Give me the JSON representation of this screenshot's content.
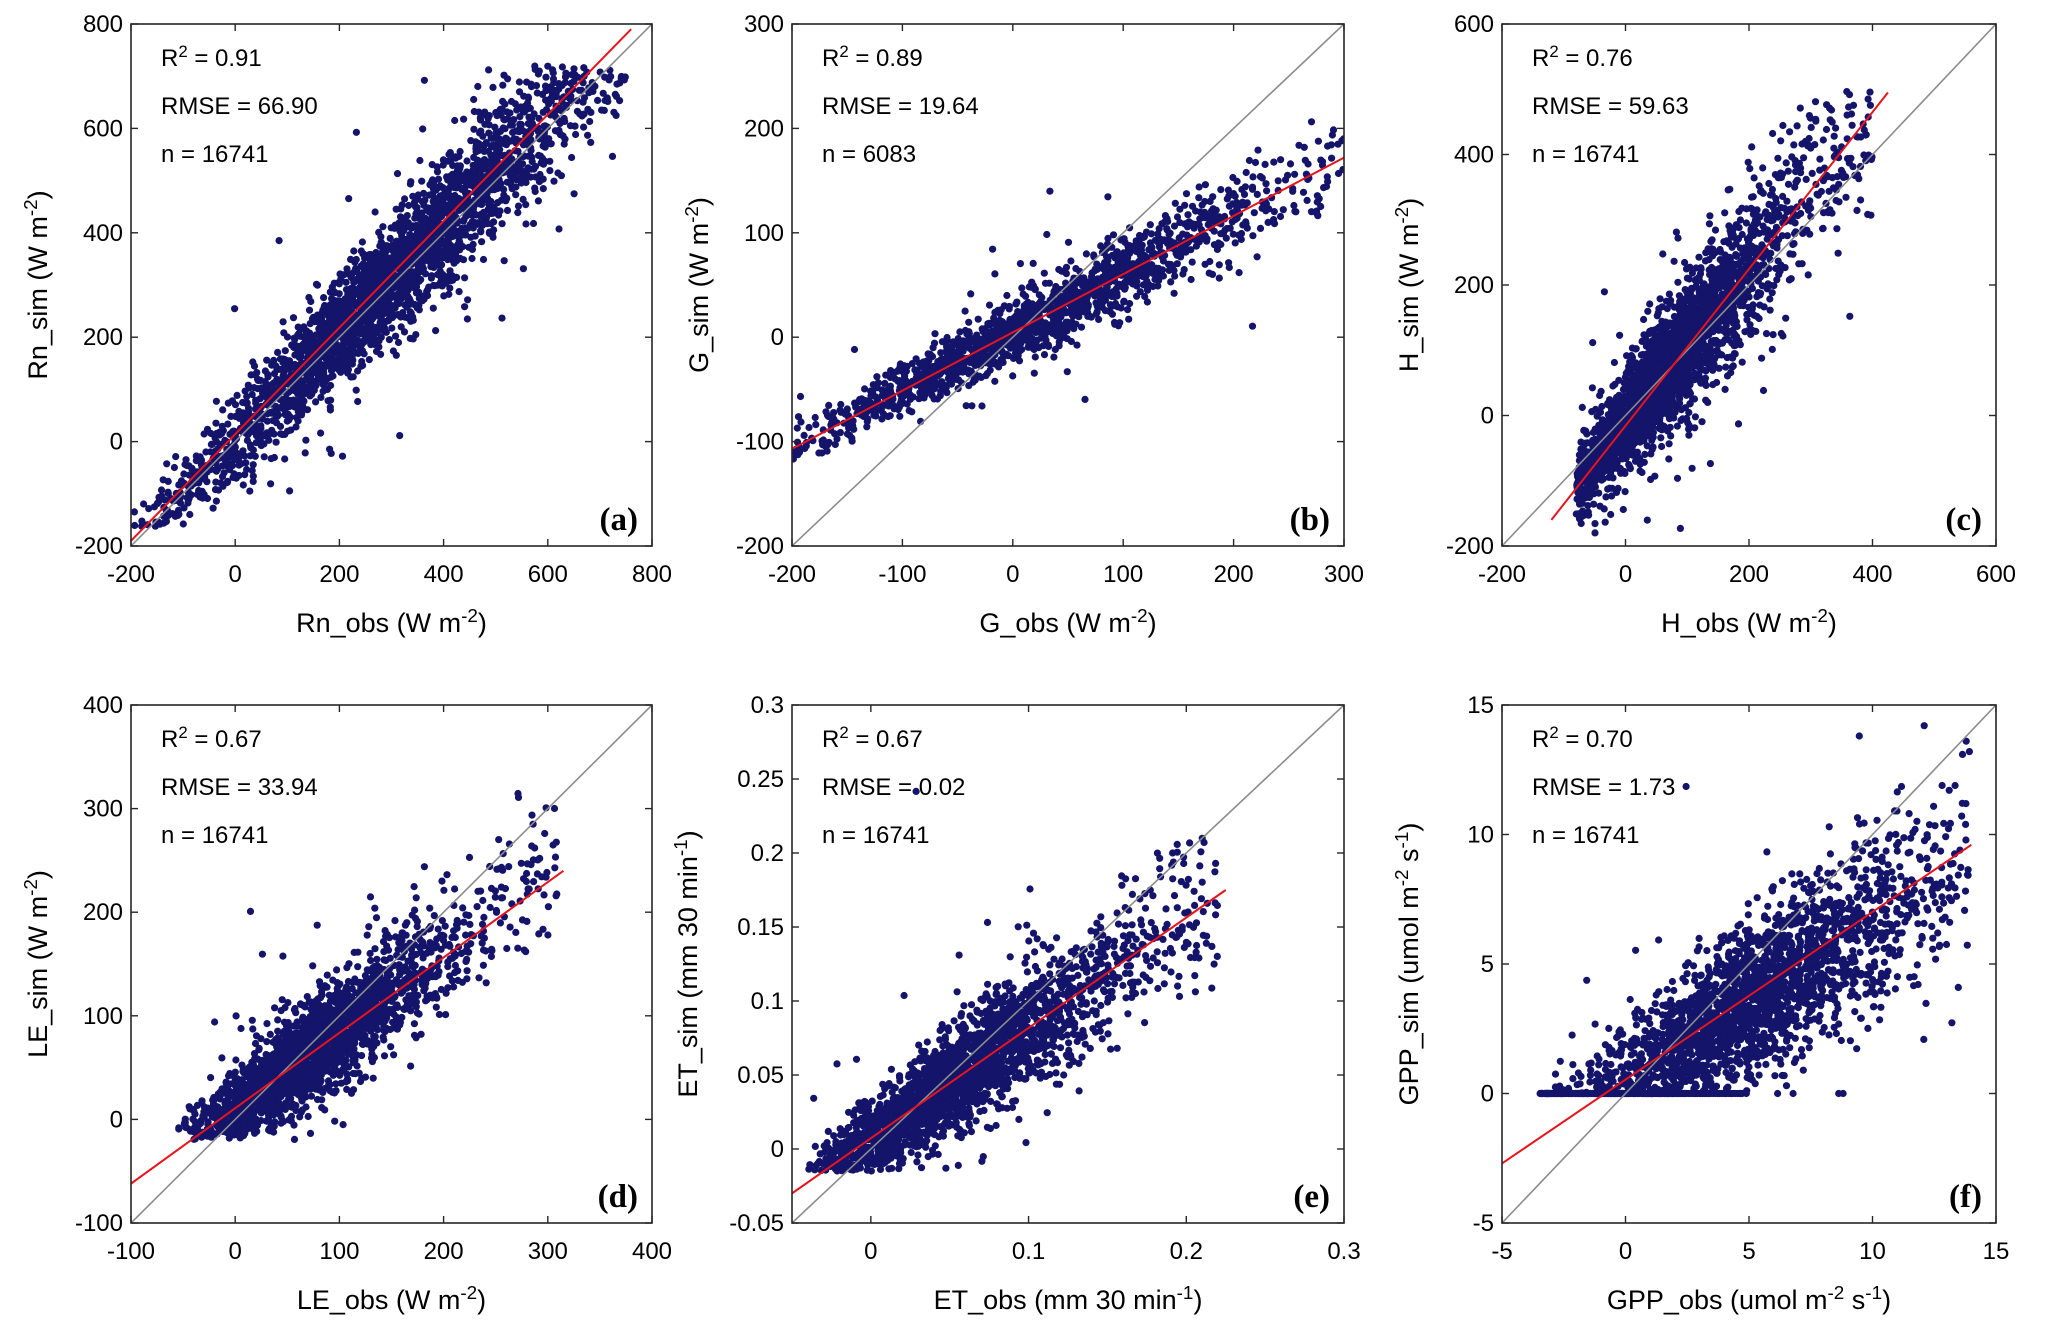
{
  "chart_data": [
    {
      "type": "scatter",
      "panel_label": "(a)",
      "xlabel": "Rn_obs (W m-2)",
      "ylabel": "Rn_sim (W m-2)",
      "xlabel_parts": [
        "Rn_obs (W m",
        "-2",
        ")"
      ],
      "ylabel_parts": [
        "Rn_sim (W m",
        "-2",
        ")"
      ],
      "xlim": [
        -200,
        800
      ],
      "ylim": [
        -200,
        800
      ],
      "xticks": [
        -200,
        0,
        200,
        400,
        600,
        800
      ],
      "yticks": [
        -200,
        0,
        200,
        400,
        600,
        800
      ],
      "xtick_labels": [
        "-200",
        "0",
        "200",
        "400",
        "600",
        "800"
      ],
      "ytick_labels": [
        "-200",
        "0",
        "200",
        "400",
        "600",
        "800"
      ],
      "stats": {
        "r2_label": "R",
        "r2_value": " = 0.91",
        "rmse": "RMSE = 66.90",
        "n": "n = 16741"
      },
      "one_to_one": [
        [
          -200,
          -200
        ],
        [
          800,
          800
        ]
      ],
      "fit_line": [
        [
          -200,
          -190
        ],
        [
          760,
          790
        ]
      ],
      "scatter_model": {
        "xmin": -200,
        "xmax": 750,
        "ymin": -165,
        "ymax": 720,
        "slope": 1.02,
        "intercept": 5,
        "spread": 55,
        "x_center": 300,
        "x_sd": 190,
        "count": 2600
      }
    },
    {
      "type": "scatter",
      "panel_label": "(b)",
      "xlabel": "G_obs (W m-2)",
      "ylabel": "G_sim (W m-2)",
      "xlabel_parts": [
        "G_obs (W m",
        "-2",
        ")"
      ],
      "ylabel_parts": [
        "G_sim (W m",
        "-2",
        ")"
      ],
      "xlim": [
        -200,
        300
      ],
      "ylim": [
        -200,
        300
      ],
      "xticks": [
        -200,
        -100,
        0,
        100,
        200,
        300
      ],
      "yticks": [
        -200,
        -100,
        0,
        100,
        200,
        300
      ],
      "xtick_labels": [
        "-200",
        "-100",
        "0",
        "100",
        "200",
        "300"
      ],
      "ytick_labels": [
        "-200",
        "-100",
        "0",
        "100",
        "200",
        "300"
      ],
      "stats": {
        "r2_label": "R",
        "r2_value": " = 0.89",
        "rmse": "RMSE = 19.64",
        "n": "n = 6083"
      },
      "one_to_one": [
        [
          -200,
          -200
        ],
        [
          300,
          300
        ]
      ],
      "fit_line": [
        [
          -200,
          -107
        ],
        [
          300,
          172
        ]
      ],
      "scatter_model": {
        "xmin": -200,
        "xmax": 300,
        "ymin": -150,
        "ymax": 235,
        "slope": 0.56,
        "intercept": 5,
        "spread": 16,
        "x_center": 20,
        "x_sd": 95,
        "count": 1600
      }
    },
    {
      "type": "scatter",
      "panel_label": "(c)",
      "xlabel": "H_obs (W m-2)",
      "ylabel": "H_sim (W m-2)",
      "xlabel_parts": [
        "H_obs (W m",
        "-2",
        ")"
      ],
      "ylabel_parts": [
        "H_sim (W m",
        "-2",
        ")"
      ],
      "xlim": [
        -200,
        600
      ],
      "ylim": [
        -200,
        600
      ],
      "xticks": [
        -200,
        0,
        200,
        400,
        600
      ],
      "yticks": [
        -200,
        0,
        200,
        400,
        600
      ],
      "xtick_labels": [
        "-200",
        "0",
        "200",
        "400",
        "600"
      ],
      "ytick_labels": [
        "-200",
        "0",
        "200",
        "400",
        "600"
      ],
      "stats": {
        "r2_label": "R",
        "r2_value": " = 0.76",
        "rmse": "RMSE = 59.63",
        "n": "n = 16741"
      },
      "one_to_one": [
        [
          -200,
          -200
        ],
        [
          600,
          600
        ]
      ],
      "fit_line": [
        [
          -120,
          -160
        ],
        [
          425,
          495
        ]
      ],
      "scatter_model": {
        "xmin": -80,
        "xmax": 400,
        "ymin": -185,
        "ymax": 500,
        "slope": 1.2,
        "intercept": -10,
        "spread": 55,
        "x_center": 60,
        "x_sd": 95,
        "count": 2400
      }
    },
    {
      "type": "scatter",
      "panel_label": "(d)",
      "xlabel": "LE_obs (W m-2)",
      "ylabel": "LE_sim (W m-2)",
      "xlabel_parts": [
        "LE_obs (W m",
        "-2",
        ")"
      ],
      "ylabel_parts": [
        "LE_sim (W m",
        "-2",
        ")"
      ],
      "xlim": [
        -100,
        400
      ],
      "ylim": [
        -100,
        400
      ],
      "xticks": [
        -100,
        0,
        100,
        200,
        300,
        400
      ],
      "yticks": [
        -100,
        0,
        100,
        200,
        300,
        400
      ],
      "xtick_labels": [
        "-100",
        "0",
        "100",
        "200",
        "300",
        "400"
      ],
      "ytick_labels": [
        "-100",
        "0",
        "100",
        "200",
        "300",
        "400"
      ],
      "stats": {
        "r2_label": "R",
        "r2_value": " = 0.67",
        "rmse": "RMSE = 33.94",
        "n": "n = 16741"
      },
      "one_to_one": [
        [
          -100,
          -100
        ],
        [
          400,
          400
        ]
      ],
      "fit_line": [
        [
          -100,
          -62
        ],
        [
          315,
          240
        ]
      ],
      "scatter_model": {
        "xmin": -60,
        "xmax": 310,
        "ymin": -20,
        "ymax": 395,
        "slope": 0.75,
        "intercept": 10,
        "spread": 26,
        "x_center": 75,
        "x_sd": 60,
        "count": 2200
      }
    },
    {
      "type": "scatter",
      "panel_label": "(e)",
      "xlabel": "ET_obs (mm 30 min-1)",
      "ylabel": "ET_sim (mm 30 min-1)",
      "xlabel_parts": [
        "ET_obs (mm 30 min",
        "-1",
        ")"
      ],
      "ylabel_parts": [
        "ET_sim (mm 30 min",
        "-1",
        ")"
      ],
      "xlim": [
        -0.05,
        0.3
      ],
      "ylim": [
        -0.05,
        0.3
      ],
      "xticks": [
        0,
        0.1,
        0.2,
        0.3
      ],
      "yticks": [
        -0.05,
        0,
        0.05,
        0.1,
        0.15,
        0.2,
        0.25,
        0.3
      ],
      "xtick_labels": [
        "0",
        "0.1",
        "0.2",
        "0.3"
      ],
      "ytick_labels": [
        "-0.05",
        "0",
        "0.05",
        "0.1",
        "0.15",
        "0.2",
        "0.25",
        "0.3"
      ],
      "stats": {
        "r2_label": "R",
        "r2_value": " = 0.67",
        "rmse": "RMSE = 0.02",
        "n": "n = 16741"
      },
      "one_to_one": [
        [
          -0.05,
          -0.05
        ],
        [
          0.3,
          0.3
        ]
      ],
      "fit_line": [
        [
          -0.05,
          -0.03
        ],
        [
          0.225,
          0.175
        ]
      ],
      "scatter_model": {
        "xmin": -0.04,
        "xmax": 0.22,
        "ymin": -0.015,
        "ymax": 0.295,
        "slope": 0.75,
        "intercept": 0.007,
        "spread": 0.019,
        "x_center": 0.055,
        "x_sd": 0.045,
        "count": 2200
      }
    },
    {
      "type": "scatter",
      "panel_label": "(f)",
      "xlabel": "GPP_obs (umol m-2 s-1)",
      "ylabel": "GPP_sim (umol m-2 s-1)",
      "xlabel_parts": [
        "GPP_obs (umol m",
        "-2",
        " s",
        "-1",
        ")"
      ],
      "ylabel_parts": [
        "GPP_sim (umol m",
        "-2",
        " s",
        "-1",
        ")"
      ],
      "xlim": [
        -5,
        15
      ],
      "ylim": [
        -5,
        15
      ],
      "xticks": [
        -5,
        0,
        5,
        10,
        15
      ],
      "yticks": [
        -5,
        0,
        5,
        10,
        15
      ],
      "xtick_labels": [
        "-5",
        "0",
        "5",
        "10",
        "15"
      ],
      "ytick_labels": [
        "-5",
        "0",
        "5",
        "10",
        "15"
      ],
      "stats": {
        "r2_label": "R",
        "r2_value": " = 0.70",
        "rmse": "RMSE = 1.73",
        "n": "n = 16741"
      },
      "one_to_one": [
        [
          -5,
          -5
        ],
        [
          15,
          15
        ]
      ],
      "fit_line": [
        [
          -5,
          -2.7
        ],
        [
          14,
          9.6
        ]
      ],
      "scatter_model": {
        "xmin": -3.5,
        "xmax": 14,
        "ymin": 0,
        "ymax": 14.7,
        "slope": 0.62,
        "intercept": 0.5,
        "spread": 1.4,
        "x_center": 5,
        "x_sd": 3.2,
        "count": 2400
      }
    }
  ]
}
